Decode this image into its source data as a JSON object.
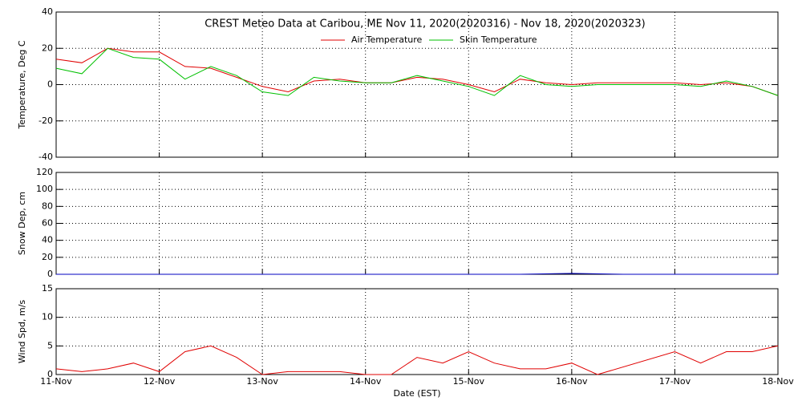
{
  "chart_data": [
    {
      "type": "line",
      "title": "CREST Meteo Data at Caribou, ME   Nov 11, 2020(2020316) - Nov 18, 2020(2020323)",
      "y_label": "Temperature, Deg C",
      "xlim": [
        11,
        18
      ],
      "xticks": [
        11,
        12,
        13,
        14,
        15,
        16,
        17,
        18
      ],
      "ylim": [
        -40,
        40
      ],
      "yticks": [
        -40,
        -20,
        0,
        20,
        40
      ],
      "grid": true,
      "legend": "top-center",
      "series": [
        {
          "name": "Air Temperature",
          "color": "#e00000",
          "x": [
            11,
            11.25,
            11.5,
            11.75,
            12,
            12.25,
            12.5,
            12.75,
            13,
            13.25,
            13.5,
            13.75,
            14,
            14.25,
            14.5,
            14.75,
            15,
            15.25,
            15.5,
            15.75,
            16,
            16.25,
            16.5,
            16.75,
            17,
            17.25,
            17.5,
            17.75,
            18
          ],
          "values": [
            14,
            12,
            20,
            18,
            18,
            10,
            9,
            4,
            -1,
            -4,
            2,
            3,
            1,
            1,
            4,
            3,
            0,
            -4,
            3,
            1,
            0,
            1,
            1,
            1,
            1,
            0,
            1,
            -1,
            -6
          ]
        },
        {
          "name": "Skin Temperature",
          "color": "#00c000",
          "x": [
            11,
            11.25,
            11.5,
            11.75,
            12,
            12.25,
            12.5,
            12.75,
            13,
            13.25,
            13.5,
            13.75,
            14,
            14.25,
            14.5,
            14.75,
            15,
            15.25,
            15.5,
            15.75,
            16,
            16.25,
            16.5,
            16.75,
            17,
            17.25,
            17.5,
            17.75,
            18
          ],
          "values": [
            9,
            6,
            20,
            15,
            14,
            3,
            10,
            5,
            -4,
            -6,
            4,
            2,
            1,
            1,
            5,
            2,
            -1,
            -6,
            5,
            0,
            -1,
            0,
            0,
            0,
            0,
            -1,
            2,
            -1,
            -6
          ]
        }
      ]
    },
    {
      "type": "line",
      "y_label": "Snow Dep, cm",
      "xlim": [
        11,
        18
      ],
      "xticks": [
        11,
        12,
        13,
        14,
        15,
        16,
        17,
        18
      ],
      "ylim": [
        0,
        120
      ],
      "yticks": [
        0,
        20,
        40,
        60,
        80,
        100,
        120
      ],
      "grid": true,
      "series": [
        {
          "name": "Snow Depth",
          "color": "#0000c0",
          "x": [
            11,
            11.5,
            12,
            12.5,
            13,
            13.5,
            14,
            14.5,
            15,
            15.5,
            16,
            16.5,
            17,
            17.5,
            18
          ],
          "values": [
            0,
            0,
            0,
            0,
            0,
            0,
            0,
            0,
            0,
            0,
            1,
            0,
            0,
            0,
            0
          ]
        }
      ]
    },
    {
      "type": "line",
      "y_label": "Wind Spd, m/s",
      "x_label": "Date (EST)",
      "xlim": [
        11,
        18
      ],
      "xticks": [
        {
          "value": 11,
          "label": "11-Nov"
        },
        {
          "value": 12,
          "label": "12-Nov"
        },
        {
          "value": 13,
          "label": "13-Nov"
        },
        {
          "value": 14,
          "label": "14-Nov"
        },
        {
          "value": 15,
          "label": "15-Nov"
        },
        {
          "value": 16,
          "label": "16-Nov"
        },
        {
          "value": 17,
          "label": "17-Nov"
        },
        {
          "value": 18,
          "label": "18-Nov"
        }
      ],
      "ylim": [
        0,
        15
      ],
      "yticks": [
        0,
        5,
        10,
        15
      ],
      "grid": true,
      "series": [
        {
          "name": "Wind Speed",
          "color": "#e00000",
          "x": [
            11,
            11.25,
            11.5,
            11.75,
            12,
            12.25,
            12.5,
            12.75,
            13,
            13.25,
            13.5,
            13.75,
            14,
            14.25,
            14.5,
            14.75,
            15,
            15.25,
            15.5,
            15.75,
            16,
            16.25,
            17,
            17.25,
            17.5,
            17.75,
            18
          ],
          "values": [
            1,
            0.5,
            1,
            2,
            0.5,
            4,
            5,
            3,
            0,
            0.5,
            0.5,
            0.5,
            0,
            0,
            3,
            2,
            4,
            2,
            1,
            1,
            2,
            0,
            4,
            2,
            4,
            4,
            5
          ]
        }
      ]
    }
  ]
}
